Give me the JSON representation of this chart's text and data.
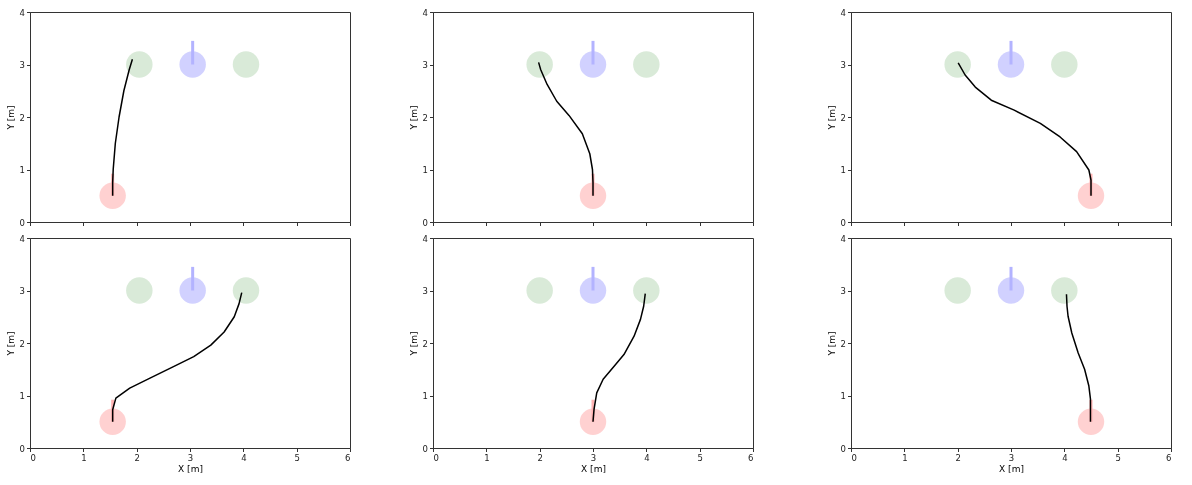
{
  "chart_data": [
    {
      "type": "line",
      "ylabel": "Y [m]",
      "xlim": [
        0,
        6
      ],
      "ylim": [
        0,
        4
      ],
      "xticks": [
        0,
        1,
        2,
        3,
        4,
        5,
        6
      ],
      "yticks": [
        0,
        1,
        2,
        3,
        4
      ],
      "tick_labels": "y",
      "grid": false,
      "series": [
        {
          "type": "scatter",
          "color": "#d5e8d4",
          "x": [
            2.05,
            4.05
          ],
          "values": [
            3,
            3
          ]
        },
        {
          "type": "scatter",
          "color": "#ccccff",
          "x": [
            3.05
          ],
          "values": [
            3
          ]
        },
        {
          "type": "scatter",
          "color": "#ffcccc",
          "x": [
            1.55
          ],
          "values": [
            0.5
          ]
        },
        {
          "color": "#b3b3ff",
          "x": [
            3.05,
            3.05
          ],
          "values": [
            3,
            3.45
          ]
        },
        {
          "color": "#ffb3b3",
          "x": [
            1.55,
            1.55
          ],
          "values": [
            0.5,
            0.92
          ]
        },
        {
          "color": "#000000",
          "x": [
            1.55,
            1.55,
            1.56,
            1.6,
            1.67,
            1.76,
            1.86,
            1.92
          ],
          "values": [
            0.5,
            0.75,
            1.0,
            1.5,
            2.0,
            2.5,
            2.9,
            3.1
          ]
        }
      ]
    },
    {
      "type": "line",
      "ylabel": "Y [m]",
      "xlim": [
        0,
        6
      ],
      "ylim": [
        0,
        4
      ],
      "xticks": [
        0,
        1,
        2,
        3,
        4,
        5,
        6
      ],
      "yticks": [
        0,
        1,
        2,
        3,
        4
      ],
      "tick_labels": "y",
      "grid": false,
      "series": [
        {
          "type": "scatter",
          "color": "#d5e8d4",
          "x": [
            2,
            4
          ],
          "values": [
            3,
            3
          ]
        },
        {
          "type": "scatter",
          "color": "#ccccff",
          "x": [
            3
          ],
          "values": [
            3
          ]
        },
        {
          "type": "scatter",
          "color": "#ffcccc",
          "x": [
            3
          ],
          "values": [
            0.5
          ]
        },
        {
          "color": "#b3b3ff",
          "x": [
            3,
            3
          ],
          "values": [
            3,
            3.45
          ]
        },
        {
          "color": "#ffb3b3",
          "x": [
            3,
            3
          ],
          "values": [
            0.5,
            0.92
          ]
        },
        {
          "color": "#000000",
          "x": [
            3.0,
            3.0,
            2.99,
            2.94,
            2.8,
            2.55,
            2.32,
            2.14,
            2.02,
            1.98
          ],
          "values": [
            0.5,
            0.75,
            1.0,
            1.3,
            1.68,
            2.03,
            2.3,
            2.62,
            2.9,
            3.04
          ]
        }
      ]
    },
    {
      "type": "line",
      "ylabel": "Y [m]",
      "xlim": [
        0,
        6
      ],
      "ylim": [
        0,
        4
      ],
      "xticks": [
        0,
        1,
        2,
        3,
        4,
        5,
        6
      ],
      "yticks": [
        0,
        1,
        2,
        3,
        4
      ],
      "tick_labels": "y",
      "grid": false,
      "series": [
        {
          "type": "scatter",
          "color": "#d5e8d4",
          "x": [
            2,
            4
          ],
          "values": [
            3,
            3
          ]
        },
        {
          "type": "scatter",
          "color": "#ccccff",
          "x": [
            3
          ],
          "values": [
            3
          ]
        },
        {
          "type": "scatter",
          "color": "#ffcccc",
          "x": [
            4.5
          ],
          "values": [
            0.5
          ]
        },
        {
          "color": "#b3b3ff",
          "x": [
            3,
            3
          ],
          "values": [
            3,
            3.45
          ]
        },
        {
          "color": "#ffb3b3",
          "x": [
            4.5,
            4.5
          ],
          "values": [
            0.5,
            0.92
          ]
        },
        {
          "color": "#000000",
          "x": [
            4.5,
            4.5,
            4.46,
            4.23,
            3.92,
            3.55,
            3.06,
            2.63,
            2.33,
            2.14,
            2.01
          ],
          "values": [
            0.5,
            0.8,
            0.99,
            1.34,
            1.62,
            1.88,
            2.13,
            2.32,
            2.57,
            2.8,
            3.03
          ]
        }
      ]
    },
    {
      "type": "line",
      "xlabel": "X [m]",
      "ylabel": "Y [m]",
      "xlim": [
        0,
        6
      ],
      "ylim": [
        0,
        4
      ],
      "xticks": [
        0,
        1,
        2,
        3,
        4,
        5,
        6
      ],
      "yticks": [
        0,
        1,
        2,
        3,
        4
      ],
      "grid": false,
      "series": [
        {
          "type": "scatter",
          "color": "#d5e8d4",
          "x": [
            2.05,
            4.05
          ],
          "values": [
            3,
            3
          ]
        },
        {
          "type": "scatter",
          "color": "#ccccff",
          "x": [
            3.05
          ],
          "values": [
            3
          ]
        },
        {
          "type": "scatter",
          "color": "#ffcccc",
          "x": [
            1.55
          ],
          "values": [
            0.5
          ]
        },
        {
          "color": "#b3b3ff",
          "x": [
            3.05,
            3.05
          ],
          "values": [
            3,
            3.45
          ]
        },
        {
          "color": "#ffb3b3",
          "x": [
            1.55,
            1.55
          ],
          "values": [
            0.5,
            0.92
          ]
        },
        {
          "color": "#000000",
          "x": [
            1.55,
            1.55,
            1.61,
            1.87,
            2.25,
            2.69,
            3.07,
            3.39,
            3.64,
            3.83,
            3.92,
            3.97
          ],
          "values": [
            0.5,
            0.73,
            0.95,
            1.14,
            1.33,
            1.55,
            1.74,
            1.96,
            2.21,
            2.5,
            2.75,
            2.96
          ]
        }
      ]
    },
    {
      "type": "line",
      "xlabel": "X [m]",
      "ylabel": "Y [m]",
      "xlim": [
        0,
        6
      ],
      "ylim": [
        0,
        4
      ],
      "xticks": [
        0,
        1,
        2,
        3,
        4,
        5,
        6
      ],
      "yticks": [
        0,
        1,
        2,
        3,
        4
      ],
      "grid": false,
      "series": [
        {
          "type": "scatter",
          "color": "#d5e8d4",
          "x": [
            2,
            4
          ],
          "values": [
            3,
            3
          ]
        },
        {
          "type": "scatter",
          "color": "#ccccff",
          "x": [
            3
          ],
          "values": [
            3
          ]
        },
        {
          "type": "scatter",
          "color": "#ffcccc",
          "x": [
            3
          ],
          "values": [
            0.5
          ]
        },
        {
          "color": "#b3b3ff",
          "x": [
            3,
            3
          ],
          "values": [
            3,
            3.45
          ]
        },
        {
          "color": "#ffb3b3",
          "x": [
            3,
            3
          ],
          "values": [
            0.5,
            0.92
          ]
        },
        {
          "color": "#000000",
          "x": [
            3.0,
            3.02,
            3.07,
            3.19,
            3.4,
            3.58,
            3.77,
            3.89,
            3.95,
            3.98
          ],
          "values": [
            0.5,
            0.74,
            1.05,
            1.31,
            1.56,
            1.78,
            2.13,
            2.45,
            2.7,
            2.94
          ]
        }
      ]
    },
    {
      "type": "line",
      "xlabel": "X [m]",
      "ylabel": "Y [m]",
      "xlim": [
        0,
        6
      ],
      "ylim": [
        0,
        4
      ],
      "xticks": [
        0,
        1,
        2,
        3,
        4,
        5,
        6
      ],
      "yticks": [
        0,
        1,
        2,
        3,
        4
      ],
      "grid": false,
      "series": [
        {
          "type": "scatter",
          "color": "#d5e8d4",
          "x": [
            2,
            4
          ],
          "values": [
            3,
            3
          ]
        },
        {
          "type": "scatter",
          "color": "#ccccff",
          "x": [
            3
          ],
          "values": [
            3
          ]
        },
        {
          "type": "scatter",
          "color": "#ffcccc",
          "x": [
            4.5
          ],
          "values": [
            0.5
          ]
        },
        {
          "color": "#b3b3ff",
          "x": [
            3,
            3
          ],
          "values": [
            3,
            3.45
          ]
        },
        {
          "color": "#ffb3b3",
          "x": [
            4.5,
            4.5
          ],
          "values": [
            0.5,
            0.92
          ]
        },
        {
          "color": "#000000",
          "x": [
            4.49,
            4.49,
            4.46,
            4.38,
            4.26,
            4.14,
            4.07,
            4.05,
            4.04
          ],
          "values": [
            0.5,
            0.93,
            1.18,
            1.5,
            1.81,
            2.19,
            2.51,
            2.7,
            2.93
          ]
        }
      ]
    }
  ]
}
